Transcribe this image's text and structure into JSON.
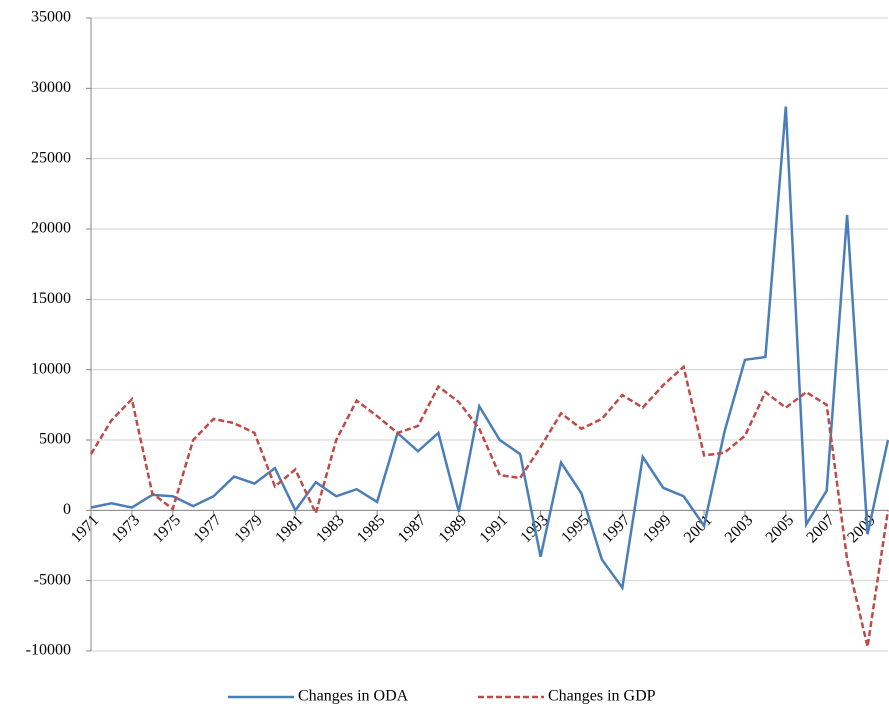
{
  "chart_data": {
    "type": "line",
    "x": [
      1971,
      1972,
      1973,
      1974,
      1975,
      1976,
      1977,
      1978,
      1979,
      1980,
      1981,
      1982,
      1983,
      1984,
      1985,
      1986,
      1987,
      1988,
      1989,
      1990,
      1991,
      1992,
      1993,
      1994,
      1995,
      1996,
      1997,
      1998,
      1999,
      2000,
      2001,
      2002,
      2003,
      2004,
      2005,
      2006,
      2007,
      2008,
      2009,
      2010
    ],
    "xlim": [
      1971,
      2010
    ],
    "xticks": [
      1971,
      1973,
      1975,
      1977,
      1979,
      1981,
      1983,
      1985,
      1987,
      1989,
      1991,
      1993,
      1995,
      1997,
      1999,
      2001,
      2003,
      2005,
      2007,
      2009
    ],
    "ylim": [
      -10000,
      35000
    ],
    "yticks": [
      -10000,
      -5000,
      0,
      5000,
      10000,
      15000,
      20000,
      25000,
      30000,
      35000
    ],
    "grid": true,
    "legend": "bottom",
    "series": [
      {
        "name": "Changes in ODA",
        "color": "#4a7ebb",
        "dash": "solid",
        "values": [
          200,
          500,
          200,
          1100,
          1000,
          300,
          1000,
          2400,
          1900,
          3000,
          0,
          2000,
          1000,
          1500,
          600,
          5500,
          4200,
          5500,
          -100,
          7400,
          5000,
          4000,
          -3300,
          3400,
          1200,
          -3500,
          -5500,
          3800,
          1600,
          1000,
          -1100,
          5600,
          10700,
          10900,
          28700,
          -1000,
          1400,
          21000,
          -1700,
          5000
        ]
      },
      {
        "name": "Changes in GDP",
        "color": "#be4b48",
        "dash": "dashed",
        "values": [
          4000,
          6400,
          7900,
          1200,
          100,
          5000,
          6500,
          6200,
          5500,
          1700,
          2900,
          -200,
          5000,
          7800,
          6700,
          5500,
          6000,
          8800,
          7700,
          5800,
          2500,
          2300,
          4500,
          6900,
          5800,
          6500,
          8200,
          7300,
          8900,
          10200,
          3900,
          4100,
          5300,
          8400,
          7300,
          8400,
          7500,
          -3500,
          -9700,
          0
        ]
      }
    ]
  }
}
